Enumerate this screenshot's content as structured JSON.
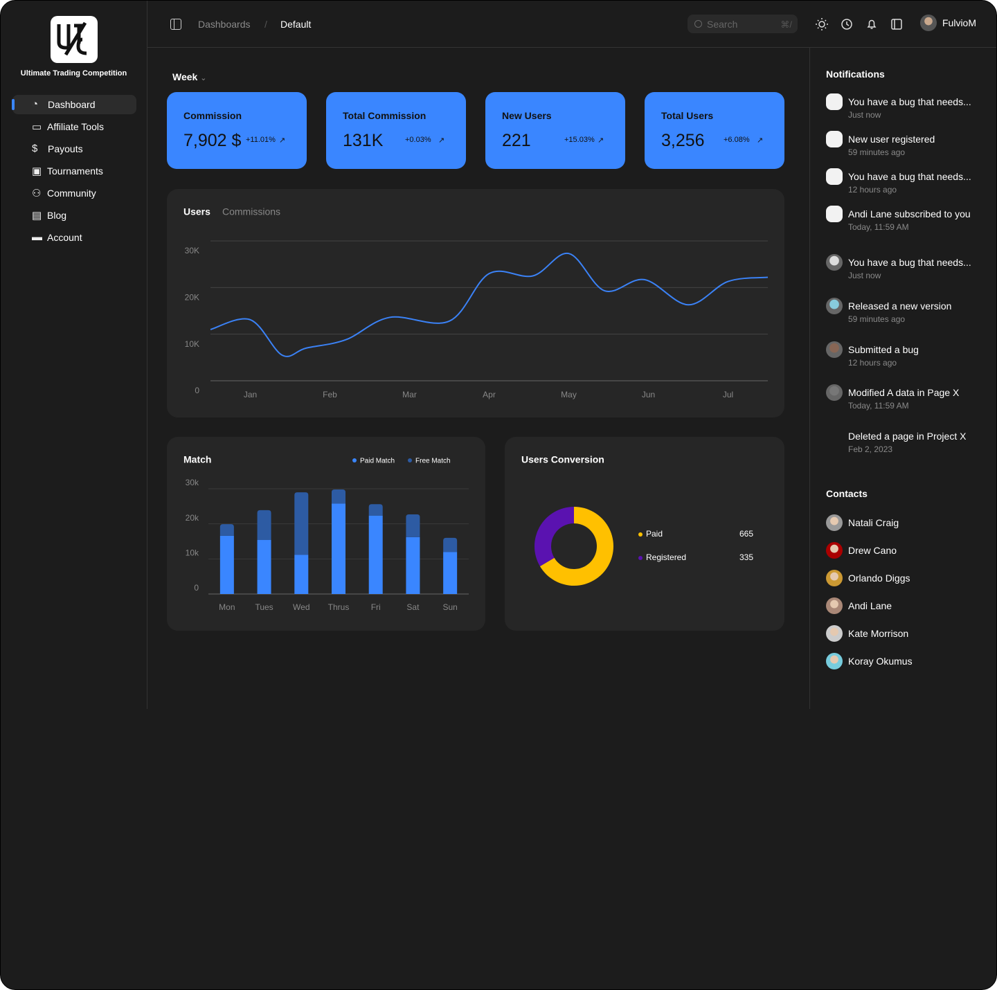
{
  "sidebar": {
    "brand": "Ultimate Trading Competition",
    "nav": [
      "Dashboard",
      "Affiliate Tools",
      "Payouts",
      "Tournaments",
      "Community",
      "Blog",
      "Account"
    ]
  },
  "header": {
    "breadcrumb": [
      "Dashboards",
      "/",
      "Default"
    ],
    "search": "Search",
    "shortcut": "⌘/",
    "user": "FulvioM"
  },
  "period": "Week",
  "cards": [
    {
      "title": "Commission",
      "value": "7,902 $",
      "change": "+11.01%"
    },
    {
      "title": "Total Commission",
      "value": "131K",
      "change": "+0.03%"
    },
    {
      "title": "New Users",
      "value": "221",
      "change": "+15.03%"
    },
    {
      "title": "Total Users",
      "value": "3,256",
      "change": "+6.08%"
    }
  ],
  "chart_data": [
    {
      "type": "line",
      "tabs": [
        "Users",
        "Commissions"
      ],
      "x": [
        -0.5,
        0,
        0.4,
        0.7,
        1.2,
        1.75,
        2.5,
        3,
        3.55,
        4,
        4.45,
        4.95,
        5.5,
        6,
        6.5
      ],
      "values": [
        11000,
        13100,
        5500,
        7000,
        8800,
        13600,
        12800,
        23000,
        22500,
        27300,
        19300,
        21700,
        16300,
        21300,
        22200
      ],
      "color": "#3b82f6",
      "xlim": [
        -0.5,
        6.5
      ],
      "ylim": [
        0,
        30000
      ],
      "xticks": [
        {
          "value": 0,
          "label": "Jan"
        },
        {
          "value": 1,
          "label": "Feb"
        },
        {
          "value": 2,
          "label": "Mar"
        },
        {
          "value": 3,
          "label": "Apr"
        },
        {
          "value": 4,
          "label": "May"
        },
        {
          "value": 5,
          "label": "Jun"
        },
        {
          "value": 6,
          "label": "Jul"
        }
      ],
      "yticks": [
        0,
        {
          "value": 10000,
          "label": "10K"
        },
        {
          "value": 20000,
          "label": "20K"
        },
        {
          "value": 30000,
          "label": "30K"
        }
      ],
      "grid": true
    },
    {
      "type": "bar",
      "stacked": true,
      "title": "Match",
      "categories": [
        "Mon",
        "Tues",
        "Wed",
        "Thrus",
        "Fri",
        "Sat",
        "Sun"
      ],
      "series": [
        {
          "name": "Paid Match",
          "color": "#3a86ff",
          "values": [
            16600,
            15400,
            11200,
            25800,
            22300,
            16200,
            12000
          ]
        },
        {
          "name": "Free Match",
          "color": "#2d5ba3",
          "values": [
            3300,
            8500,
            17800,
            4000,
            3300,
            6500,
            4000
          ]
        }
      ],
      "ylim": [
        0,
        30000
      ],
      "yticks": [
        0,
        {
          "value": 10000,
          "label": "10k"
        },
        {
          "value": 20000,
          "label": "20k"
        },
        {
          "value": 30000,
          "label": "30k"
        }
      ],
      "grid": true
    },
    {
      "type": "donut",
      "title": "Users Conversion",
      "categories": [
        "Paid",
        "Registered"
      ],
      "values": [
        665,
        335
      ],
      "colors": [
        "#ffc000",
        "#5a12b0"
      ]
    }
  ],
  "notifications": {
    "title": "Notifications",
    "items": [
      {
        "text": "You have a bug that needs...",
        "time": "Just now"
      },
      {
        "text": "New user registered",
        "time": "59 minutes ago"
      },
      {
        "text": "You have a bug that needs...",
        "time": "12 hours ago"
      },
      {
        "text": "Andi Lane subscribed to you",
        "time": "Today, 11:59 AM"
      },
      {
        "text": "You have a bug that needs...",
        "time": "Just now"
      },
      {
        "text": "Released a new version",
        "time": "59 minutes ago"
      },
      {
        "text": "Submitted a bug",
        "time": "12 hours ago"
      },
      {
        "text": "Modified A data in Page X",
        "time": "Today, 11:59 AM"
      },
      {
        "text": "Deleted a page in Project X",
        "time": "Feb 2, 2023"
      }
    ]
  },
  "contacts": {
    "title": "Contacts",
    "names": [
      "Natali Craig",
      "Drew Cano",
      "Orlando Diggs",
      "Andi Lane",
      "Kate Morrison",
      "Koray Okumus"
    ]
  }
}
